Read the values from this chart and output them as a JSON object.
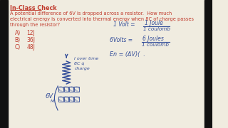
{
  "bg_color": "#f0ece0",
  "title": "In-Class Check",
  "problem_line1": "A potential difference of 6V is dropped across a resistor.  How much",
  "problem_line2": "electrical energy is converted into thermal energy when 8C of charge passes",
  "problem_line3": "through the resistor?",
  "options": [
    [
      "A)",
      "12J"
    ],
    [
      "B)",
      "36J"
    ],
    [
      "C)",
      "48J"
    ]
  ],
  "eq1_left": "1 Volt = ",
  "eq1_num": "1 Joule",
  "eq1_den": "1 coulomb",
  "eq2_left": "6Volts = ",
  "eq2_num": "6 Joules",
  "eq2_den": "1 coulomb",
  "eq3": "En = (ΔV)(  .",
  "label_6v": "6V",
  "label_m": "M",
  "label_current": "I over time",
  "label_8c": "8C q",
  "label_charge": "charge",
  "red": "#c0392b",
  "blue": "#334d99",
  "black_border": "#222222"
}
